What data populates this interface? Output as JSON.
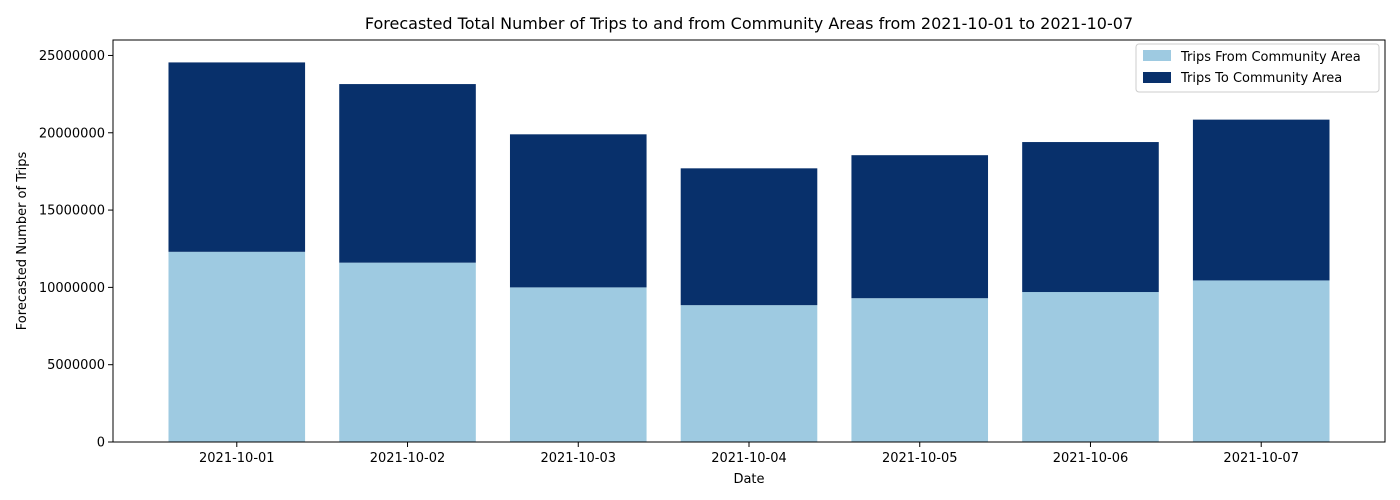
{
  "chart_data": {
    "type": "bar",
    "stacked": true,
    "title": "Forecasted Total Number of Trips to and from Community Areas from 2021-10-01 to 2021-10-07",
    "xlabel": "Date",
    "ylabel": "Forecasted Number of Trips",
    "ylim": [
      0,
      26000000
    ],
    "yticks": [
      0,
      5000000,
      10000000,
      15000000,
      20000000,
      25000000
    ],
    "grid": false,
    "legend_position": "top-right",
    "categories": [
      "2021-10-01",
      "2021-10-02",
      "2021-10-03",
      "2021-10-04",
      "2021-10-05",
      "2021-10-06",
      "2021-10-07"
    ],
    "series": [
      {
        "name": "Trips From Community Area",
        "color": "#9ecae1",
        "values": [
          12300000,
          11600000,
          10000000,
          8850000,
          9300000,
          9700000,
          10450000
        ]
      },
      {
        "name": "Trips To Community Area",
        "color": "#08306b",
        "values": [
          12250000,
          11550000,
          9900000,
          8850000,
          9250000,
          9700000,
          10400000
        ]
      }
    ]
  }
}
